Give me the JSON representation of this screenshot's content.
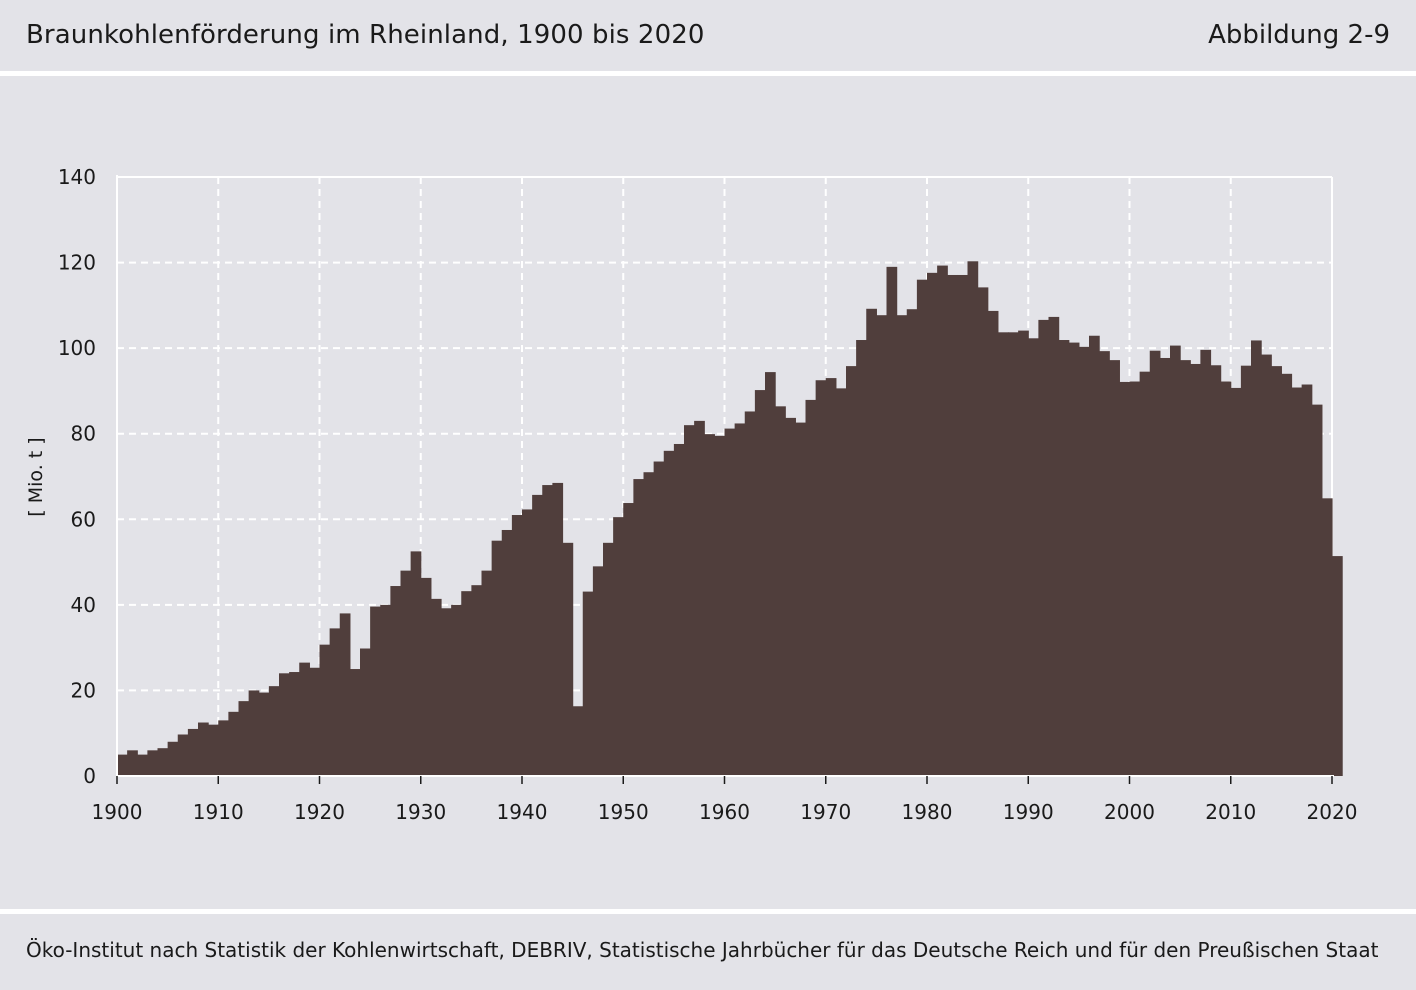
{
  "header": {
    "title": "Braunkohlenförderung im Rheinland, 1900 bis 2020",
    "figure_number": "Abbildung 2-9"
  },
  "footer": {
    "source": "Öko-Institut nach Statistik der Kohlenwirtschaft, DEBRIV, Statistische Jahrbücher für das Deutsche Reich und für den Preußischen Staat"
  },
  "colors": {
    "background": "#e3e3e8",
    "bars": "#503e3c",
    "grid": "#ffffff"
  },
  "chart_data": {
    "type": "bar",
    "ylabel": "[ Mio. t ]",
    "xlabel": "",
    "xlim": [
      1900,
      2020
    ],
    "ylim": [
      0,
      140
    ],
    "grid": true,
    "x_ticks": [
      1900,
      1910,
      1920,
      1930,
      1940,
      1950,
      1960,
      1970,
      1980,
      1990,
      2000,
      2010,
      2020
    ],
    "y_ticks": [
      0,
      20,
      40,
      60,
      80,
      100,
      120,
      140
    ],
    "x": [
      1900,
      1901,
      1902,
      1903,
      1904,
      1905,
      1906,
      1907,
      1908,
      1909,
      1910,
      1911,
      1912,
      1913,
      1914,
      1915,
      1916,
      1917,
      1918,
      1919,
      1920,
      1921,
      1922,
      1923,
      1924,
      1925,
      1926,
      1927,
      1928,
      1929,
      1930,
      1931,
      1932,
      1933,
      1934,
      1935,
      1936,
      1937,
      1938,
      1939,
      1940,
      1941,
      1942,
      1943,
      1944,
      1945,
      1946,
      1947,
      1948,
      1949,
      1950,
      1951,
      1952,
      1953,
      1954,
      1955,
      1956,
      1957,
      1958,
      1959,
      1960,
      1961,
      1962,
      1963,
      1964,
      1965,
      1966,
      1967,
      1968,
      1969,
      1970,
      1971,
      1972,
      1973,
      1974,
      1975,
      1976,
      1977,
      1978,
      1979,
      1980,
      1981,
      1982,
      1983,
      1984,
      1985,
      1986,
      1987,
      1988,
      1989,
      1990,
      1991,
      1992,
      1993,
      1994,
      1995,
      1996,
      1997,
      1998,
      1999,
      2000,
      2001,
      2002,
      2003,
      2004,
      2005,
      2006,
      2007,
      2008,
      2009,
      2010,
      2011,
      2012,
      2013,
      2014,
      2015,
      2016,
      2017,
      2018,
      2019,
      2020
    ],
    "values": [
      5,
      6,
      5,
      6,
      6.5,
      8,
      9.7,
      11,
      12.5,
      12,
      13,
      15,
      17.5,
      20,
      19.5,
      21,
      24,
      24.3,
      26.5,
      25.3,
      30.7,
      34.5,
      38,
      25,
      29.8,
      39.6,
      40,
      44.4,
      48,
      52.5,
      46.3,
      41.4,
      39.2,
      40,
      43.2,
      44.6,
      48,
      55,
      57.5,
      61,
      62.3,
      65.7,
      68,
      68.5,
      54.5,
      16.3,
      43.1,
      49,
      54.5,
      60.5,
      63.8,
      69.4,
      71,
      73.5,
      76,
      77.6,
      82,
      83,
      79.9,
      79.5,
      81.2,
      82.4,
      85.2,
      90.2,
      94.4,
      86.4,
      83.7,
      82.6,
      87.9,
      92.5,
      93,
      90.6,
      95.8,
      101.9,
      109.2,
      107.7,
      119,
      107.7,
      109.1,
      116,
      117.6,
      119.3,
      117.1,
      117.1,
      120.3,
      114.2,
      108.7,
      103.7,
      103.7,
      104.1,
      102.3,
      106.6,
      107.3,
      101.9,
      101.3,
      100.3,
      102.9,
      99.3,
      97.2,
      92.1,
      92.2,
      94.5,
      99.4,
      97.7,
      100.6,
      97.2,
      96.3,
      99.6,
      96,
      92.2,
      90.7,
      95.9,
      101.8,
      98.5,
      95.8,
      94,
      90.8,
      91.5,
      86.8,
      64.9,
      51.4
    ]
  }
}
